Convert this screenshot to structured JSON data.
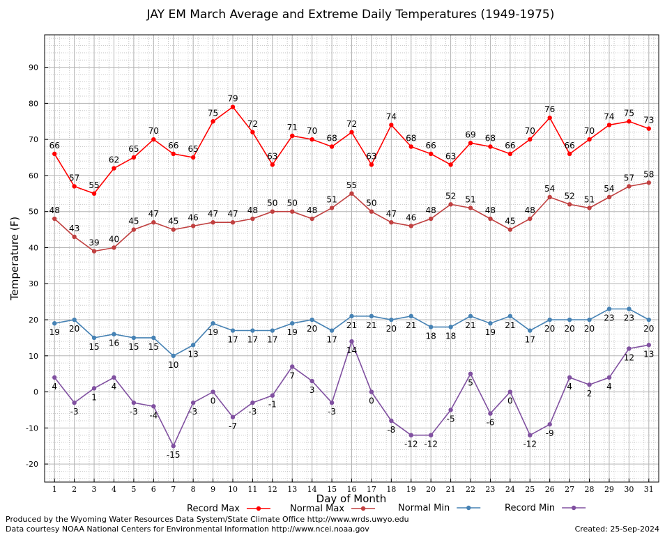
{
  "chart_data": {
    "type": "line",
    "title": "JAY EM March Average and Extreme Daily Temperatures (1949-1975)",
    "xlabel": "Day of Month",
    "ylabel": "Temperature (F)",
    "x": [
      1,
      2,
      3,
      4,
      5,
      6,
      7,
      8,
      9,
      10,
      11,
      12,
      13,
      14,
      15,
      16,
      17,
      18,
      19,
      20,
      21,
      22,
      23,
      24,
      25,
      26,
      27,
      28,
      29,
      30,
      31
    ],
    "xlim": [
      0.5,
      31.5
    ],
    "ylim": [
      -25,
      99
    ],
    "yticks": [
      -20,
      -10,
      0,
      10,
      20,
      30,
      40,
      50,
      60,
      70,
      80,
      90
    ],
    "grid": true,
    "legend_position": "bottom",
    "series": [
      {
        "name": "Record Max",
        "color": "#ff0000",
        "label_pos": "above",
        "values": [
          66,
          57,
          55,
          62,
          65,
          70,
          66,
          65,
          75,
          79,
          72,
          63,
          71,
          70,
          68,
          72,
          63,
          74,
          68,
          66,
          63,
          69,
          68,
          66,
          70,
          76,
          66,
          70,
          74,
          75,
          73
        ]
      },
      {
        "name": "Normal Max",
        "color": "#c04040",
        "label_pos": "above",
        "values": [
          48,
          43,
          39,
          40,
          45,
          47,
          45,
          46,
          47,
          47,
          48,
          50,
          50,
          48,
          51,
          55,
          50,
          47,
          46,
          48,
          52,
          51,
          48,
          45,
          48,
          54,
          52,
          51,
          54,
          57,
          58
        ]
      },
      {
        "name": "Normal Min",
        "color": "#4682b4",
        "label_pos": "below",
        "values": [
          19,
          20,
          15,
          16,
          15,
          15,
          10,
          13,
          19,
          17,
          17,
          17,
          19,
          20,
          17,
          21,
          21,
          20,
          21,
          18,
          18,
          21,
          19,
          21,
          17,
          20,
          20,
          20,
          23,
          23,
          20
        ]
      },
      {
        "name": "Record Min",
        "color": "#8050a0",
        "label_pos": "below",
        "values": [
          4,
          -3,
          1,
          4,
          -3,
          -4,
          -15,
          -3,
          0,
          -7,
          -3,
          -1,
          7,
          3,
          -3,
          14,
          0,
          -8,
          -12,
          -12,
          -5,
          5,
          -6,
          0,
          -12,
          -9,
          4,
          2,
          4,
          12,
          13
        ]
      }
    ]
  },
  "footer": {
    "produced_by": "Produced by the Wyoming Water Resources Data System/State Climate Office http://www.wrds.uwyo.edu",
    "courtesy": "Data courtesy NOAA National Centers for Environmental Information http://www.ncei.noaa.gov",
    "created": "Created:  25-Sep-2024"
  }
}
